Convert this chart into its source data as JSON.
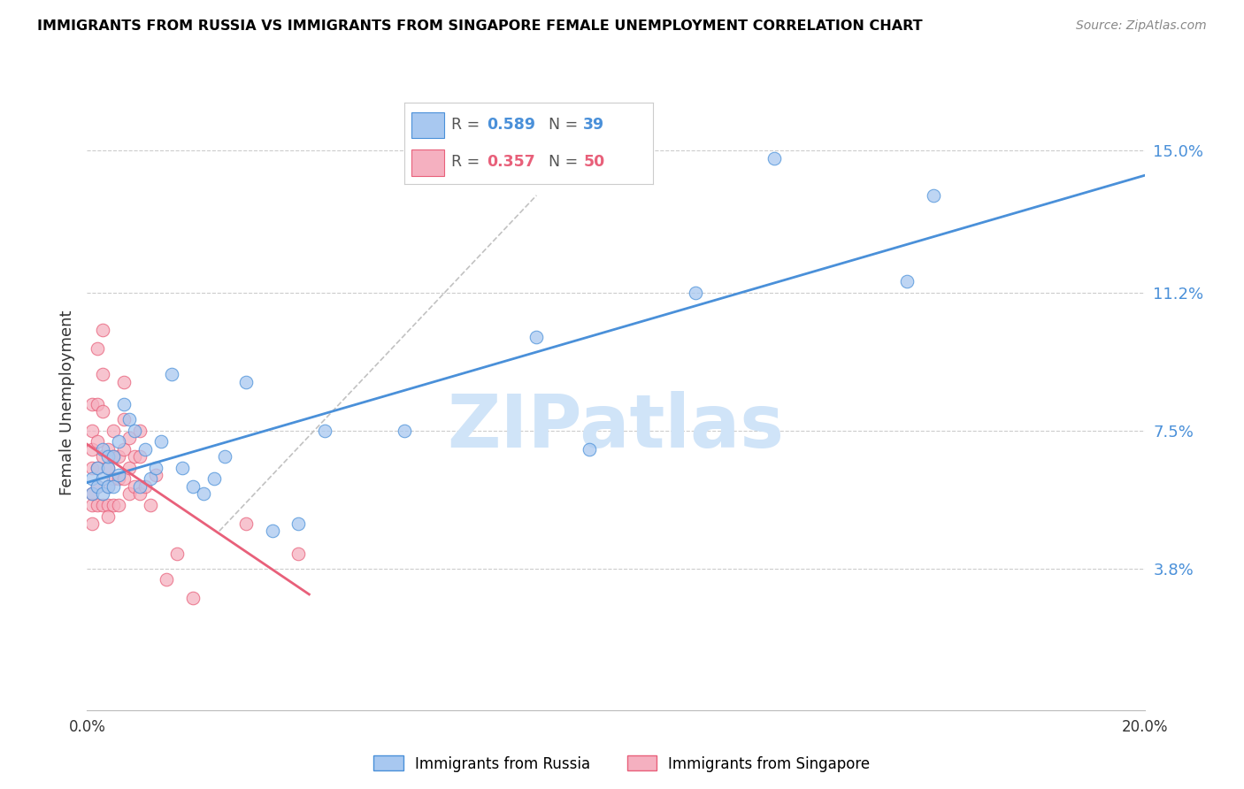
{
  "title": "IMMIGRANTS FROM RUSSIA VS IMMIGRANTS FROM SINGAPORE FEMALE UNEMPLOYMENT CORRELATION CHART",
  "source": "Source: ZipAtlas.com",
  "ylabel": "Female Unemployment",
  "r_russia": 0.589,
  "n_russia": 39,
  "r_singapore": 0.357,
  "n_singapore": 50,
  "xlim": [
    0.0,
    0.2
  ],
  "ylim": [
    0.0,
    0.165
  ],
  "yticks": [
    0.038,
    0.075,
    0.112,
    0.15
  ],
  "ytick_labels": [
    "3.8%",
    "7.5%",
    "11.2%",
    "15.0%"
  ],
  "xticks": [
    0.0,
    0.04,
    0.08,
    0.12,
    0.16,
    0.2
  ],
  "xtick_labels": [
    "0.0%",
    "",
    "",
    "",
    "",
    "20.0%"
  ],
  "color_russia": "#A8C8F0",
  "color_singapore": "#F5B0C0",
  "line_color_russia": "#4A90D9",
  "line_color_singapore": "#E8607A",
  "watermark": "ZIPatlas",
  "watermark_color": "#D0E4F8",
  "russia_x": [
    0.001,
    0.001,
    0.002,
    0.002,
    0.003,
    0.003,
    0.003,
    0.004,
    0.004,
    0.004,
    0.005,
    0.005,
    0.006,
    0.006,
    0.007,
    0.008,
    0.009,
    0.01,
    0.011,
    0.012,
    0.013,
    0.014,
    0.016,
    0.018,
    0.02,
    0.022,
    0.024,
    0.026,
    0.03,
    0.035,
    0.04,
    0.045,
    0.06,
    0.085,
    0.095,
    0.115,
    0.13,
    0.155,
    0.16
  ],
  "russia_y": [
    0.058,
    0.062,
    0.06,
    0.065,
    0.058,
    0.062,
    0.07,
    0.06,
    0.065,
    0.068,
    0.06,
    0.068,
    0.063,
    0.072,
    0.082,
    0.078,
    0.075,
    0.06,
    0.07,
    0.062,
    0.065,
    0.072,
    0.09,
    0.065,
    0.06,
    0.058,
    0.062,
    0.068,
    0.088,
    0.048,
    0.05,
    0.075,
    0.075,
    0.1,
    0.07,
    0.112,
    0.148,
    0.115,
    0.138
  ],
  "singapore_x": [
    0.001,
    0.001,
    0.001,
    0.001,
    0.001,
    0.001,
    0.001,
    0.002,
    0.002,
    0.002,
    0.002,
    0.002,
    0.002,
    0.003,
    0.003,
    0.003,
    0.003,
    0.003,
    0.004,
    0.004,
    0.004,
    0.004,
    0.004,
    0.005,
    0.005,
    0.005,
    0.005,
    0.006,
    0.006,
    0.006,
    0.007,
    0.007,
    0.007,
    0.007,
    0.008,
    0.008,
    0.008,
    0.009,
    0.009,
    0.01,
    0.01,
    0.01,
    0.011,
    0.012,
    0.013,
    0.015,
    0.017,
    0.02,
    0.03,
    0.04
  ],
  "singapore_y": [
    0.082,
    0.075,
    0.07,
    0.065,
    0.058,
    0.055,
    0.05,
    0.097,
    0.082,
    0.072,
    0.065,
    0.06,
    0.055,
    0.102,
    0.09,
    0.08,
    0.068,
    0.055,
    0.07,
    0.065,
    0.06,
    0.055,
    0.052,
    0.075,
    0.068,
    0.062,
    0.055,
    0.068,
    0.062,
    0.055,
    0.088,
    0.078,
    0.07,
    0.062,
    0.073,
    0.065,
    0.058,
    0.068,
    0.06,
    0.075,
    0.068,
    0.058,
    0.06,
    0.055,
    0.063,
    0.035,
    0.042,
    0.03,
    0.05,
    0.042
  ]
}
